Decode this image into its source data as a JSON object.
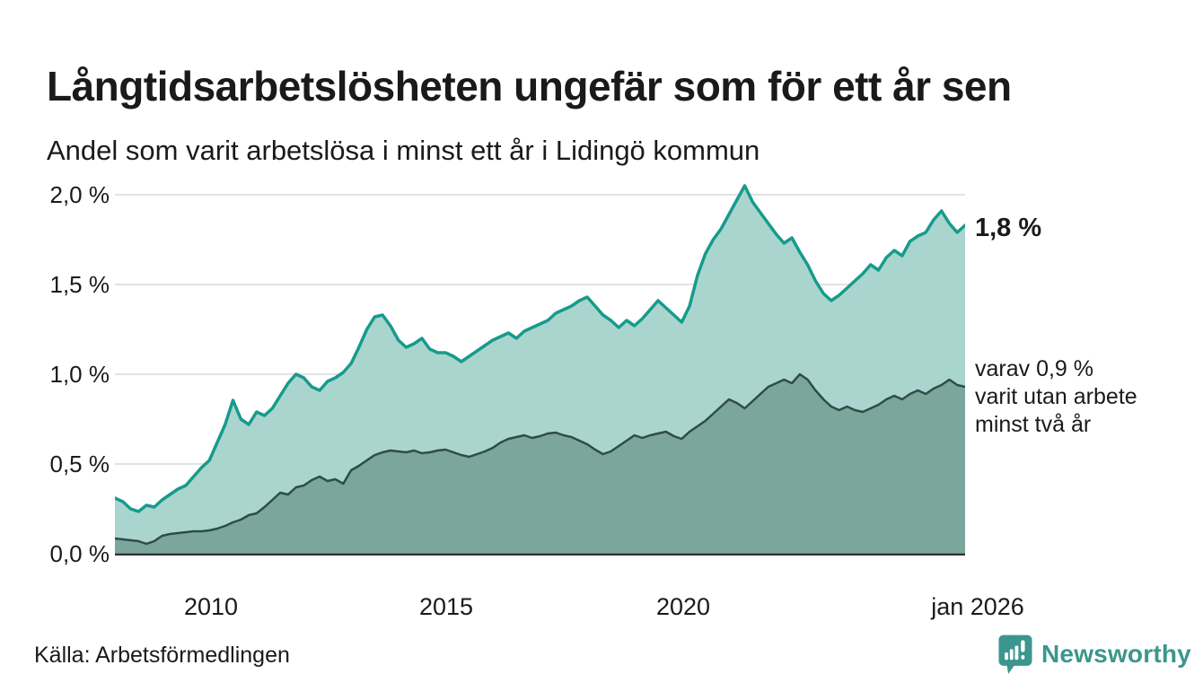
{
  "header": {
    "title": "Långtidsarbetslösheten ungefär som för ett år sen",
    "subtitle": "Andel som varit arbetslösa i minst ett år i Lidingö kommun"
  },
  "annotations": {
    "latest_value_label": "1,8 %",
    "secondary_label_lines": [
      "varav 0,9 %",
      "varit utan arbete",
      "minst två år"
    ]
  },
  "footer": {
    "source": "Källa: Arbetsförmedlingen",
    "brand_name": "Newsworthy",
    "brand_icon": "newsworthy-chart-bubble-icon"
  },
  "colors": {
    "series1_line": "#169b8c",
    "series1_fill": "#aad5ce",
    "series2_line": "#2d4d45",
    "series2_fill": "#7aa69c",
    "grid": "#e2e2e2",
    "axis": "#2f2f2f",
    "text": "#1a1a1a",
    "brand": "#3b968e"
  },
  "chart_data": {
    "type": "area",
    "title": "Långtidsarbetslösheten ungefär som för ett år sen",
    "subtitle": "Andel som varit arbetslösa i minst ett år i Lidingö kommun",
    "unit": "%",
    "grid": "horizontal",
    "legend": "direct-labels-right",
    "x_start": 2008.0,
    "x_step": 0.1666667,
    "xlim": [
      2008.0,
      2026.0
    ],
    "ylim": [
      0,
      2.09
    ],
    "y_ticks": [
      {
        "value": 2.0,
        "label": "2,0 %"
      },
      {
        "value": 1.5,
        "label": "1,5 %"
      },
      {
        "value": 1.0,
        "label": "1,0 %"
      },
      {
        "value": 0.5,
        "label": "0,5 %"
      },
      {
        "value": 0.0,
        "label": "0,0 %"
      }
    ],
    "x_ticks": [
      {
        "x": 2010.0,
        "label": "2010"
      },
      {
        "x": 2015.0,
        "label": "2015"
      },
      {
        "x": 2020.0,
        "label": "2020"
      },
      {
        "x": 2026.0,
        "label": "jan 2026"
      }
    ],
    "series": [
      {
        "name": "Andel som varit arbetslösa i minst ett år",
        "latest": 1.8,
        "values": [
          0.31,
          0.29,
          0.25,
          0.235,
          0.27,
          0.26,
          0.3,
          0.33,
          0.36,
          0.38,
          0.43,
          0.48,
          0.52,
          0.62,
          0.72,
          0.855,
          0.75,
          0.72,
          0.79,
          0.77,
          0.81,
          0.88,
          0.95,
          1.0,
          0.98,
          0.93,
          0.91,
          0.96,
          0.98,
          1.01,
          1.06,
          1.15,
          1.25,
          1.32,
          1.33,
          1.27,
          1.19,
          1.15,
          1.17,
          1.2,
          1.14,
          1.12,
          1.12,
          1.1,
          1.07,
          1.1,
          1.13,
          1.16,
          1.19,
          1.21,
          1.23,
          1.2,
          1.24,
          1.26,
          1.28,
          1.3,
          1.34,
          1.36,
          1.38,
          1.41,
          1.43,
          1.38,
          1.33,
          1.3,
          1.26,
          1.3,
          1.27,
          1.31,
          1.36,
          1.41,
          1.37,
          1.33,
          1.29,
          1.38,
          1.55,
          1.67,
          1.75,
          1.81,
          1.89,
          1.97,
          2.05,
          1.96,
          1.9,
          1.84,
          1.78,
          1.73,
          1.76,
          1.68,
          1.61,
          1.52,
          1.45,
          1.41,
          1.44,
          1.48,
          1.52,
          1.56,
          1.61,
          1.58,
          1.65,
          1.69,
          1.66,
          1.74,
          1.77,
          1.79,
          1.86,
          1.91,
          1.84,
          1.79,
          1.83
        ]
      },
      {
        "name": "varav utan arbete i minst två år",
        "latest": 0.9,
        "values": [
          0.085,
          0.08,
          0.075,
          0.07,
          0.055,
          0.07,
          0.1,
          0.11,
          0.115,
          0.12,
          0.125,
          0.125,
          0.13,
          0.14,
          0.155,
          0.175,
          0.19,
          0.215,
          0.225,
          0.26,
          0.3,
          0.34,
          0.33,
          0.37,
          0.38,
          0.41,
          0.43,
          0.405,
          0.415,
          0.39,
          0.465,
          0.49,
          0.52,
          0.55,
          0.565,
          0.575,
          0.57,
          0.565,
          0.575,
          0.56,
          0.565,
          0.575,
          0.58,
          0.565,
          0.55,
          0.54,
          0.555,
          0.57,
          0.59,
          0.62,
          0.64,
          0.65,
          0.66,
          0.645,
          0.655,
          0.67,
          0.675,
          0.66,
          0.65,
          0.63,
          0.61,
          0.58,
          0.555,
          0.57,
          0.6,
          0.63,
          0.66,
          0.645,
          0.66,
          0.67,
          0.68,
          0.655,
          0.64,
          0.68,
          0.71,
          0.74,
          0.78,
          0.82,
          0.86,
          0.84,
          0.81,
          0.85,
          0.89,
          0.93,
          0.95,
          0.97,
          0.95,
          1.0,
          0.97,
          0.91,
          0.86,
          0.82,
          0.8,
          0.82,
          0.8,
          0.79,
          0.81,
          0.83,
          0.86,
          0.88,
          0.86,
          0.89,
          0.91,
          0.89,
          0.92,
          0.94,
          0.97,
          0.94,
          0.93
        ]
      }
    ]
  }
}
